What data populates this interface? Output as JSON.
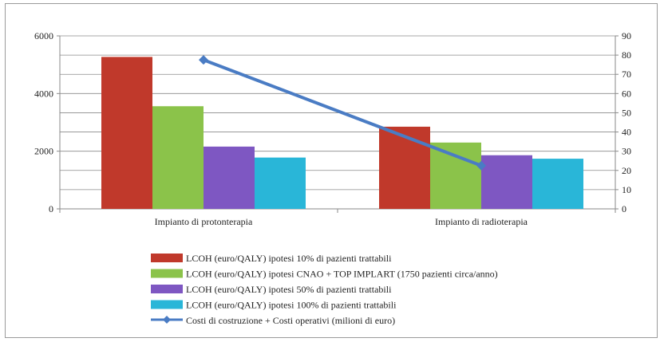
{
  "chart_data": {
    "type": "bar",
    "categories": [
      "Impianto di protonterapia",
      "Impianto di radioterapia"
    ],
    "series": [
      {
        "name": "LCOH (euro/QALY) ipotesi 10% di pazienti trattabili",
        "values": [
          5270,
          2850
        ],
        "color": "#c0392b"
      },
      {
        "name": "LCOH (euro/QALY) ipotesi CNAO + TOP IMPLART (1750 pazienti circa/anno)",
        "values": [
          3560,
          2300
        ],
        "color": "#8bc34a"
      },
      {
        "name": "LCOH (euro/QALY) ipotesi 50% di pazienti trattabili",
        "values": [
          2160,
          1860
        ],
        "color": "#7e57c2"
      },
      {
        "name": "LCOH (euro/QALY) ipotesi 100% di pazienti trattabili",
        "values": [
          1780,
          1740
        ],
        "color": "#29b6d8"
      }
    ],
    "line_series": {
      "name": "Costi di costruzione + Costi operativi (milioni di euro)",
      "values": [
        77.5,
        22.5
      ],
      "color": "#4a7cc4",
      "axis": "secondary"
    },
    "ylim": [
      0,
      6000
    ],
    "yticks": [
      "0",
      "2000",
      "4000",
      "6000"
    ],
    "y2lim": [
      0,
      90
    ],
    "y2ticks": [
      "0",
      "10",
      "20",
      "30",
      "40",
      "50",
      "60",
      "70",
      "80",
      "90"
    ],
    "grid": true,
    "legend_position": "bottom"
  }
}
